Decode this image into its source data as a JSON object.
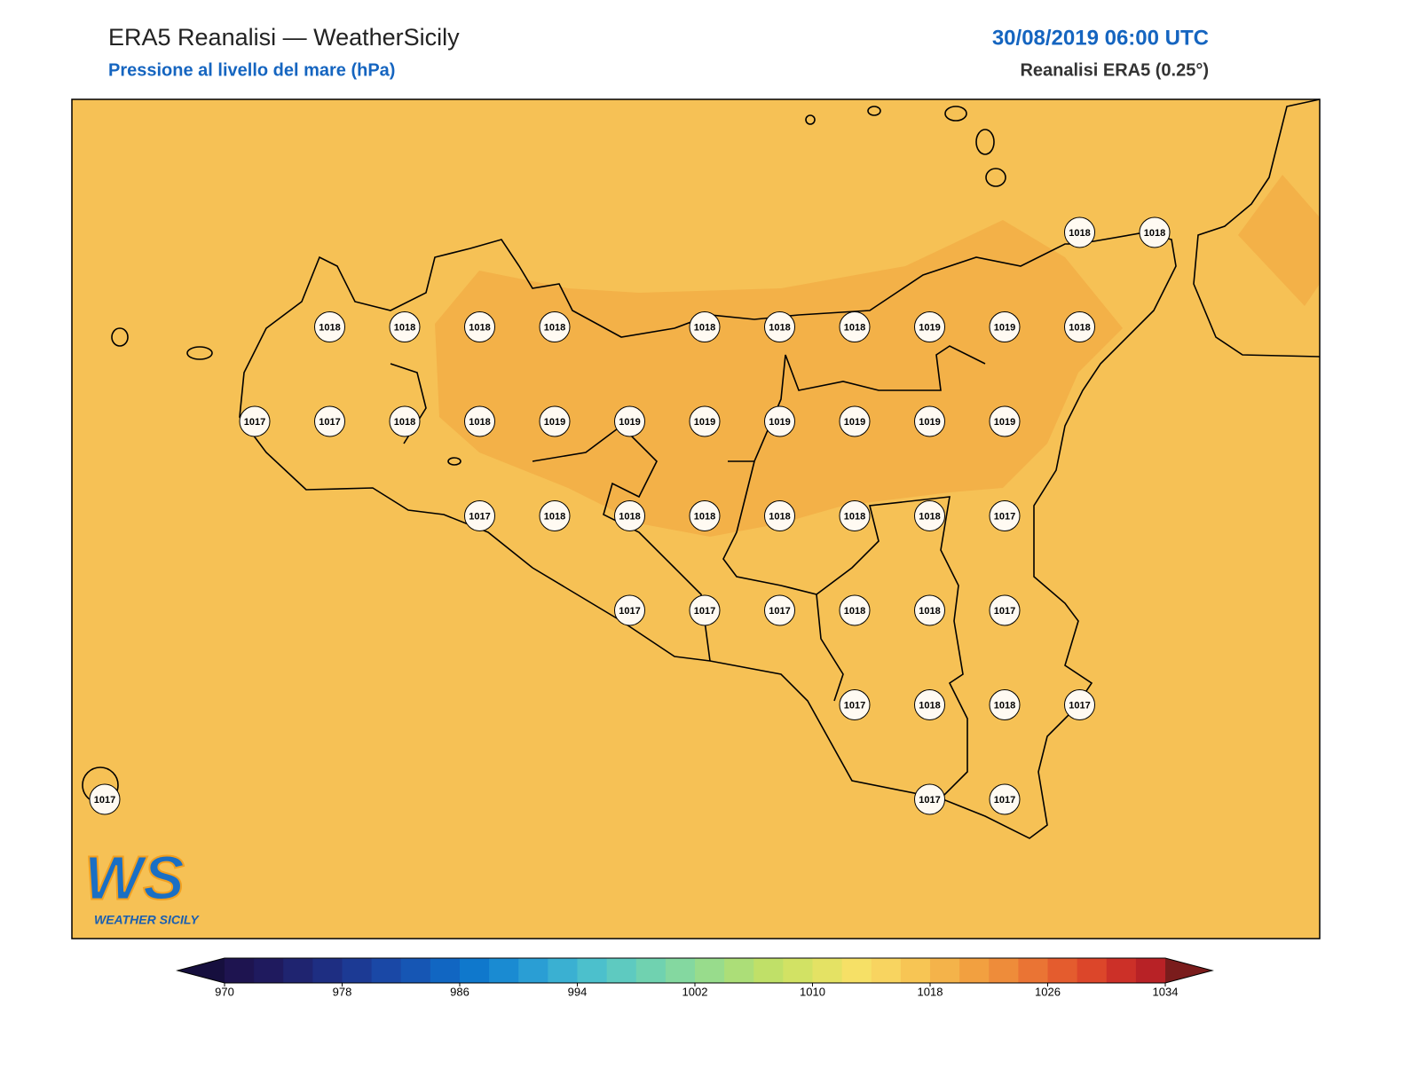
{
  "header": {
    "title": "ERA5 Reanalisi — WeatherSicily",
    "subtitle": "Pressione al livello del mare (hPa)",
    "date": "30/08/2019 06:00 UTC",
    "source": "Reanalisi ERA5 (0.25°)"
  },
  "grid": {
    "rows": [
      [
        null,
        null,
        null,
        null,
        null,
        null,
        null,
        null,
        null,
        null,
        null,
        null,
        null,
        1018,
        1018
      ],
      [
        null,
        null,
        null,
        1018,
        1018,
        1018,
        1018,
        null,
        1018,
        1018,
        1018,
        1019,
        1019,
        1018,
        null
      ],
      [
        null,
        null,
        1017,
        1017,
        1018,
        1018,
        1019,
        1019,
        1019,
        1019,
        1019,
        1019,
        1019,
        null,
        null
      ],
      [
        null,
        null,
        null,
        null,
        null,
        1017,
        1018,
        1018,
        1018,
        1018,
        1018,
        1018,
        1017,
        null,
        null
      ],
      [
        null,
        null,
        null,
        null,
        null,
        null,
        null,
        1017,
        1017,
        1017,
        1018,
        1018,
        1017,
        null,
        null
      ],
      [
        null,
        null,
        null,
        null,
        null,
        null,
        null,
        null,
        null,
        null,
        1017,
        1018,
        1018,
        1017,
        null
      ],
      [
        1017,
        null,
        null,
        null,
        null,
        null,
        null,
        null,
        null,
        null,
        null,
        1017,
        1017,
        null,
        null
      ]
    ]
  },
  "colorbar": {
    "ticks": [
      970,
      978,
      986,
      994,
      1002,
      1010,
      1018,
      1026,
      1034
    ],
    "colors": [
      "#1e1450",
      "#1f1a5e",
      "#1f2470",
      "#1e2e82",
      "#1c3a94",
      "#1a48a6",
      "#1656b4",
      "#1166c2",
      "#0f78cc",
      "#1a8bd2",
      "#2a9ed4",
      "#3ab0d2",
      "#4cc0cc",
      "#5ecac0",
      "#70d2b0",
      "#84d8a0",
      "#98dc8c",
      "#acde78",
      "#c0e068",
      "#d2e264",
      "#e4e264",
      "#f6e066",
      "#f8d460",
      "#f7c554",
      "#f4b34a",
      "#f2a040",
      "#ee8c3a",
      "#ea7434",
      "#e45c2e",
      "#dc462a",
      "#cc3028",
      "#b82226"
    ],
    "under": "#160f3e",
    "over": "#7a1c1c"
  },
  "logo": {
    "mark": "WS",
    "text": "WEATHER SICILY"
  }
}
